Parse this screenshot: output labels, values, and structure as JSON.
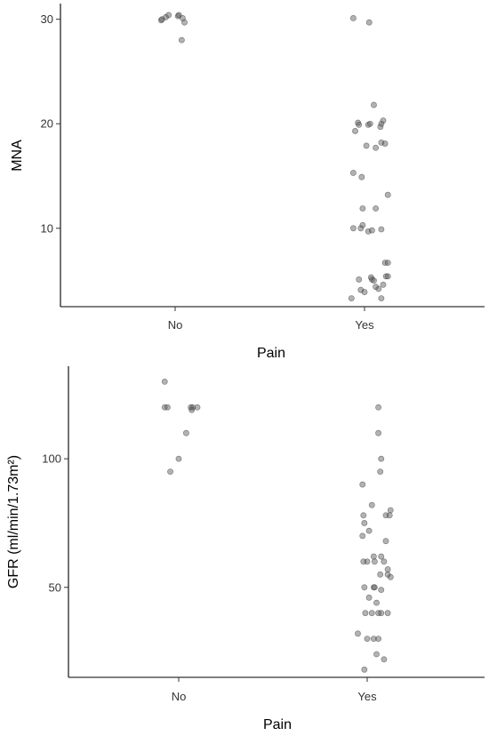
{
  "colors": {
    "point": "#555555",
    "axis": "#000000",
    "background": "#ffffff"
  },
  "chart_data": [
    {
      "type": "scatter",
      "title": "",
      "xlabel": "Pain",
      "ylabel": "MNA",
      "categories": [
        "No",
        "Yes"
      ],
      "ylim": [
        2.5,
        31.5
      ],
      "yticks": [
        10,
        20,
        30
      ],
      "grid": false,
      "series": [
        {
          "category": "No",
          "points": [
            {
              "jitter": -0.15,
              "y": 29.9
            },
            {
              "jitter": -0.14,
              "y": 30.0
            },
            {
              "jitter": -0.1,
              "y": 30.2
            },
            {
              "jitter": -0.07,
              "y": 30.4
            },
            {
              "jitter": 0.03,
              "y": 30.3
            },
            {
              "jitter": 0.04,
              "y": 30.4
            },
            {
              "jitter": 0.08,
              "y": 30.1
            },
            {
              "jitter": 0.1,
              "y": 29.7
            },
            {
              "jitter": 0.07,
              "y": 28.0
            }
          ]
        },
        {
          "category": "Yes",
          "points": [
            {
              "jitter": -0.12,
              "y": 30.1
            },
            {
              "jitter": 0.05,
              "y": 29.7
            },
            {
              "jitter": 0.1,
              "y": 21.8
            },
            {
              "jitter": -0.07,
              "y": 20.1
            },
            {
              "jitter": -0.06,
              "y": 19.9
            },
            {
              "jitter": 0.04,
              "y": 19.9
            },
            {
              "jitter": 0.06,
              "y": 20.0
            },
            {
              "jitter": 0.18,
              "y": 20.0
            },
            {
              "jitter": 0.2,
              "y": 20.3
            },
            {
              "jitter": 0.17,
              "y": 19.7
            },
            {
              "jitter": -0.1,
              "y": 19.3
            },
            {
              "jitter": 0.18,
              "y": 18.2
            },
            {
              "jitter": 0.22,
              "y": 18.1
            },
            {
              "jitter": 0.02,
              "y": 17.9
            },
            {
              "jitter": 0.12,
              "y": 17.7
            },
            {
              "jitter": -0.12,
              "y": 15.3
            },
            {
              "jitter": -0.03,
              "y": 14.9
            },
            {
              "jitter": 0.25,
              "y": 13.2
            },
            {
              "jitter": -0.02,
              "y": 11.9
            },
            {
              "jitter": 0.12,
              "y": 11.9
            },
            {
              "jitter": -0.12,
              "y": 10.0
            },
            {
              "jitter": -0.04,
              "y": 10.0
            },
            {
              "jitter": -0.02,
              "y": 10.3
            },
            {
              "jitter": 0.04,
              "y": 9.7
            },
            {
              "jitter": 0.08,
              "y": 9.8
            },
            {
              "jitter": 0.18,
              "y": 9.9
            },
            {
              "jitter": 0.22,
              "y": 6.7
            },
            {
              "jitter": 0.25,
              "y": 6.7
            },
            {
              "jitter": -0.06,
              "y": 5.1
            },
            {
              "jitter": 0.07,
              "y": 5.3
            },
            {
              "jitter": 0.08,
              "y": 5.1
            },
            {
              "jitter": 0.1,
              "y": 5.0
            },
            {
              "jitter": 0.23,
              "y": 5.4
            },
            {
              "jitter": 0.25,
              "y": 5.4
            },
            {
              "jitter": 0.2,
              "y": 4.6
            },
            {
              "jitter": -0.04,
              "y": 4.1
            },
            {
              "jitter": 0.0,
              "y": 3.9
            },
            {
              "jitter": 0.12,
              "y": 4.4
            },
            {
              "jitter": 0.15,
              "y": 4.2
            },
            {
              "jitter": -0.14,
              "y": 3.3
            },
            {
              "jitter": 0.18,
              "y": 3.3
            }
          ]
        }
      ]
    },
    {
      "type": "scatter",
      "title": "",
      "xlabel": "Pain",
      "ylabel": "GFR (ml/min/1.73m²)",
      "categories": [
        "No",
        "Yes"
      ],
      "ylim": [
        15,
        136
      ],
      "yticks": [
        50,
        100
      ],
      "grid": false,
      "series": [
        {
          "category": "No",
          "points": [
            {
              "jitter": -0.15,
              "y": 130
            },
            {
              "jitter": -0.15,
              "y": 120
            },
            {
              "jitter": -0.12,
              "y": 120
            },
            {
              "jitter": 0.13,
              "y": 120
            },
            {
              "jitter": 0.15,
              "y": 120
            },
            {
              "jitter": 0.2,
              "y": 120
            },
            {
              "jitter": 0.14,
              "y": 119
            },
            {
              "jitter": 0.08,
              "y": 110
            },
            {
              "jitter": 0.0,
              "y": 100
            },
            {
              "jitter": -0.09,
              "y": 95
            }
          ]
        },
        {
          "category": "Yes",
          "points": [
            {
              "jitter": 0.12,
              "y": 120
            },
            {
              "jitter": 0.12,
              "y": 110
            },
            {
              "jitter": 0.15,
              "y": 100
            },
            {
              "jitter": 0.14,
              "y": 95
            },
            {
              "jitter": -0.05,
              "y": 90
            },
            {
              "jitter": 0.05,
              "y": 82
            },
            {
              "jitter": 0.25,
              "y": 80
            },
            {
              "jitter": 0.2,
              "y": 78
            },
            {
              "jitter": 0.24,
              "y": 78
            },
            {
              "jitter": -0.04,
              "y": 78
            },
            {
              "jitter": -0.03,
              "y": 75
            },
            {
              "jitter": 0.02,
              "y": 72
            },
            {
              "jitter": -0.05,
              "y": 70
            },
            {
              "jitter": 0.2,
              "y": 68
            },
            {
              "jitter": 0.15,
              "y": 62
            },
            {
              "jitter": 0.07,
              "y": 62
            },
            {
              "jitter": 0.08,
              "y": 60
            },
            {
              "jitter": -0.04,
              "y": 60
            },
            {
              "jitter": 0.0,
              "y": 60
            },
            {
              "jitter": 0.18,
              "y": 60
            },
            {
              "jitter": 0.22,
              "y": 57
            },
            {
              "jitter": 0.22,
              "y": 55
            },
            {
              "jitter": 0.25,
              "y": 54
            },
            {
              "jitter": 0.14,
              "y": 55
            },
            {
              "jitter": 0.07,
              "y": 50
            },
            {
              "jitter": 0.08,
              "y": 50
            },
            {
              "jitter": -0.03,
              "y": 50
            },
            {
              "jitter": 0.15,
              "y": 49
            },
            {
              "jitter": 0.02,
              "y": 46
            },
            {
              "jitter": 0.1,
              "y": 44
            },
            {
              "jitter": -0.02,
              "y": 40
            },
            {
              "jitter": 0.05,
              "y": 40
            },
            {
              "jitter": 0.12,
              "y": 40
            },
            {
              "jitter": 0.15,
              "y": 40
            },
            {
              "jitter": 0.22,
              "y": 40
            },
            {
              "jitter": -0.1,
              "y": 32
            },
            {
              "jitter": 0.0,
              "y": 30
            },
            {
              "jitter": 0.07,
              "y": 30
            },
            {
              "jitter": 0.12,
              "y": 30
            },
            {
              "jitter": 0.1,
              "y": 24
            },
            {
              "jitter": 0.18,
              "y": 22
            },
            {
              "jitter": -0.03,
              "y": 18
            }
          ]
        }
      ]
    }
  ]
}
